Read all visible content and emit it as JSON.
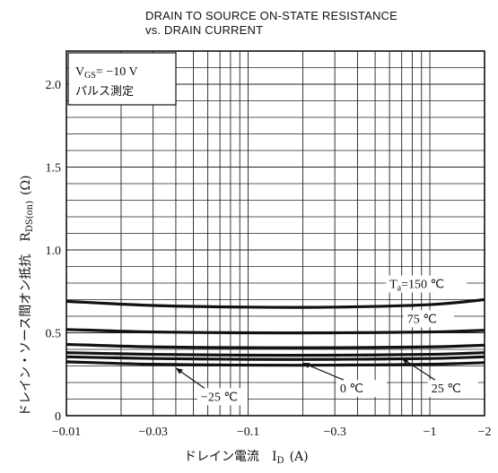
{
  "chart_data": {
    "type": "line",
    "title_lines": [
      "DRAIN TO SOURCE ON-STATE RESISTANCE",
      "vs. DRAIN CURRENT"
    ],
    "xlabel": "ドレイン電流　I",
    "xlabel_sub": "D",
    "xlabel_unit": "(A)",
    "ylabel": "ドレイン・ソース間オン抵抗　R",
    "ylabel_sub": "DS(on)",
    "ylabel_unit": "(Ω)",
    "x_scale": "log",
    "x_direction": "decreasing (magnitude increases to the right)",
    "xlim": [
      -0.01,
      -2
    ],
    "ylim": [
      0,
      2.2
    ],
    "x_ticks": [
      {
        "value": -0.01,
        "label": "−0.01"
      },
      {
        "value": -0.03,
        "label": "−0.03"
      },
      {
        "value": -0.1,
        "label": "−0.1"
      },
      {
        "value": -0.3,
        "label": "−0.3"
      },
      {
        "value": -1,
        "label": "−1"
      },
      {
        "value": -2,
        "label": "−2"
      }
    ],
    "y_ticks": [
      {
        "value": 0,
        "label": "0"
      },
      {
        "value": 0.5,
        "label": "0.5"
      },
      {
        "value": 1.0,
        "label": "1.0"
      },
      {
        "value": 1.5,
        "label": "1.5"
      },
      {
        "value": 2.0,
        "label": "2.0"
      }
    ],
    "grid": true,
    "condition_box": {
      "line1_main": "V",
      "line1_sub": "GS",
      "line1_rest": "= −10  V",
      "line2": "パルス測定"
    },
    "series": [
      {
        "name": "Ta=150 °C",
        "x": [
          -0.01,
          -0.03,
          -0.1,
          -0.3,
          -1,
          -2
        ],
        "y": [
          0.69,
          0.665,
          0.655,
          0.655,
          0.67,
          0.7
        ]
      },
      {
        "name": "75 °C",
        "x": [
          -0.01,
          -0.03,
          -0.1,
          -0.3,
          -1,
          -2
        ],
        "y": [
          0.52,
          0.505,
          0.5,
          0.5,
          0.505,
          0.515
        ]
      },
      {
        "name": "",
        "x": [
          -0.01,
          -0.03,
          -0.1,
          -0.3,
          -1,
          -2
        ],
        "y": [
          0.43,
          0.415,
          0.41,
          0.41,
          0.415,
          0.425
        ]
      },
      {
        "name": "25 °C",
        "x": [
          -0.01,
          -0.03,
          -0.1,
          -0.3,
          -1,
          -2
        ],
        "y": [
          0.38,
          0.37,
          0.365,
          0.365,
          0.37,
          0.38
        ]
      },
      {
        "name": "0 °C",
        "x": [
          -0.01,
          -0.03,
          -0.1,
          -0.3,
          -1,
          -2
        ],
        "y": [
          0.355,
          0.345,
          0.34,
          0.34,
          0.345,
          0.355
        ]
      },
      {
        "name": "−25 °C",
        "x": [
          -0.01,
          -0.03,
          -0.1,
          -0.3,
          -1,
          -2
        ],
        "y": [
          0.325,
          0.31,
          0.305,
          0.305,
          0.31,
          0.32
        ]
      }
    ],
    "annotations": [
      {
        "main": "T",
        "sub": "a",
        "rest": "=150 ℃",
        "series_index": 0
      },
      {
        "main": "75 ℃",
        "series_index": 1
      },
      {
        "main": "25 ℃",
        "series_index": 3
      },
      {
        "main": "0 ℃",
        "series_index": 4
      },
      {
        "main": "−25 ℃",
        "series_index": 5
      }
    ],
    "line_color": "#111111",
    "grid_color": "#222222"
  }
}
